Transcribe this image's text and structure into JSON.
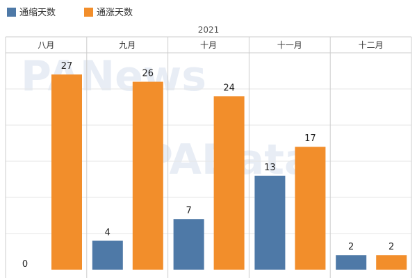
{
  "colors": {
    "deflation": "#4e79a7",
    "inflation": "#f28e2b",
    "gridline": "#e6e6e6",
    "divider": "#cccccc",
    "watermark": "#e8edf5"
  },
  "watermarks": {
    "top": "PANews",
    "middle": "PAData"
  },
  "chart_data": {
    "type": "bar",
    "year_label": "2021",
    "categories": [
      "八月",
      "九月",
      "十月",
      "十一月",
      "十二月"
    ],
    "series": [
      {
        "name": "通缩天数",
        "color": "#4e79a7",
        "values": [
          0,
          4,
          7,
          13,
          2
        ]
      },
      {
        "name": "通涨天数",
        "color": "#f28e2b",
        "values": [
          27,
          26,
          24,
          17,
          2
        ]
      }
    ],
    "ylim": [
      0,
      30
    ],
    "grid": true,
    "legend_position": "top-left"
  }
}
